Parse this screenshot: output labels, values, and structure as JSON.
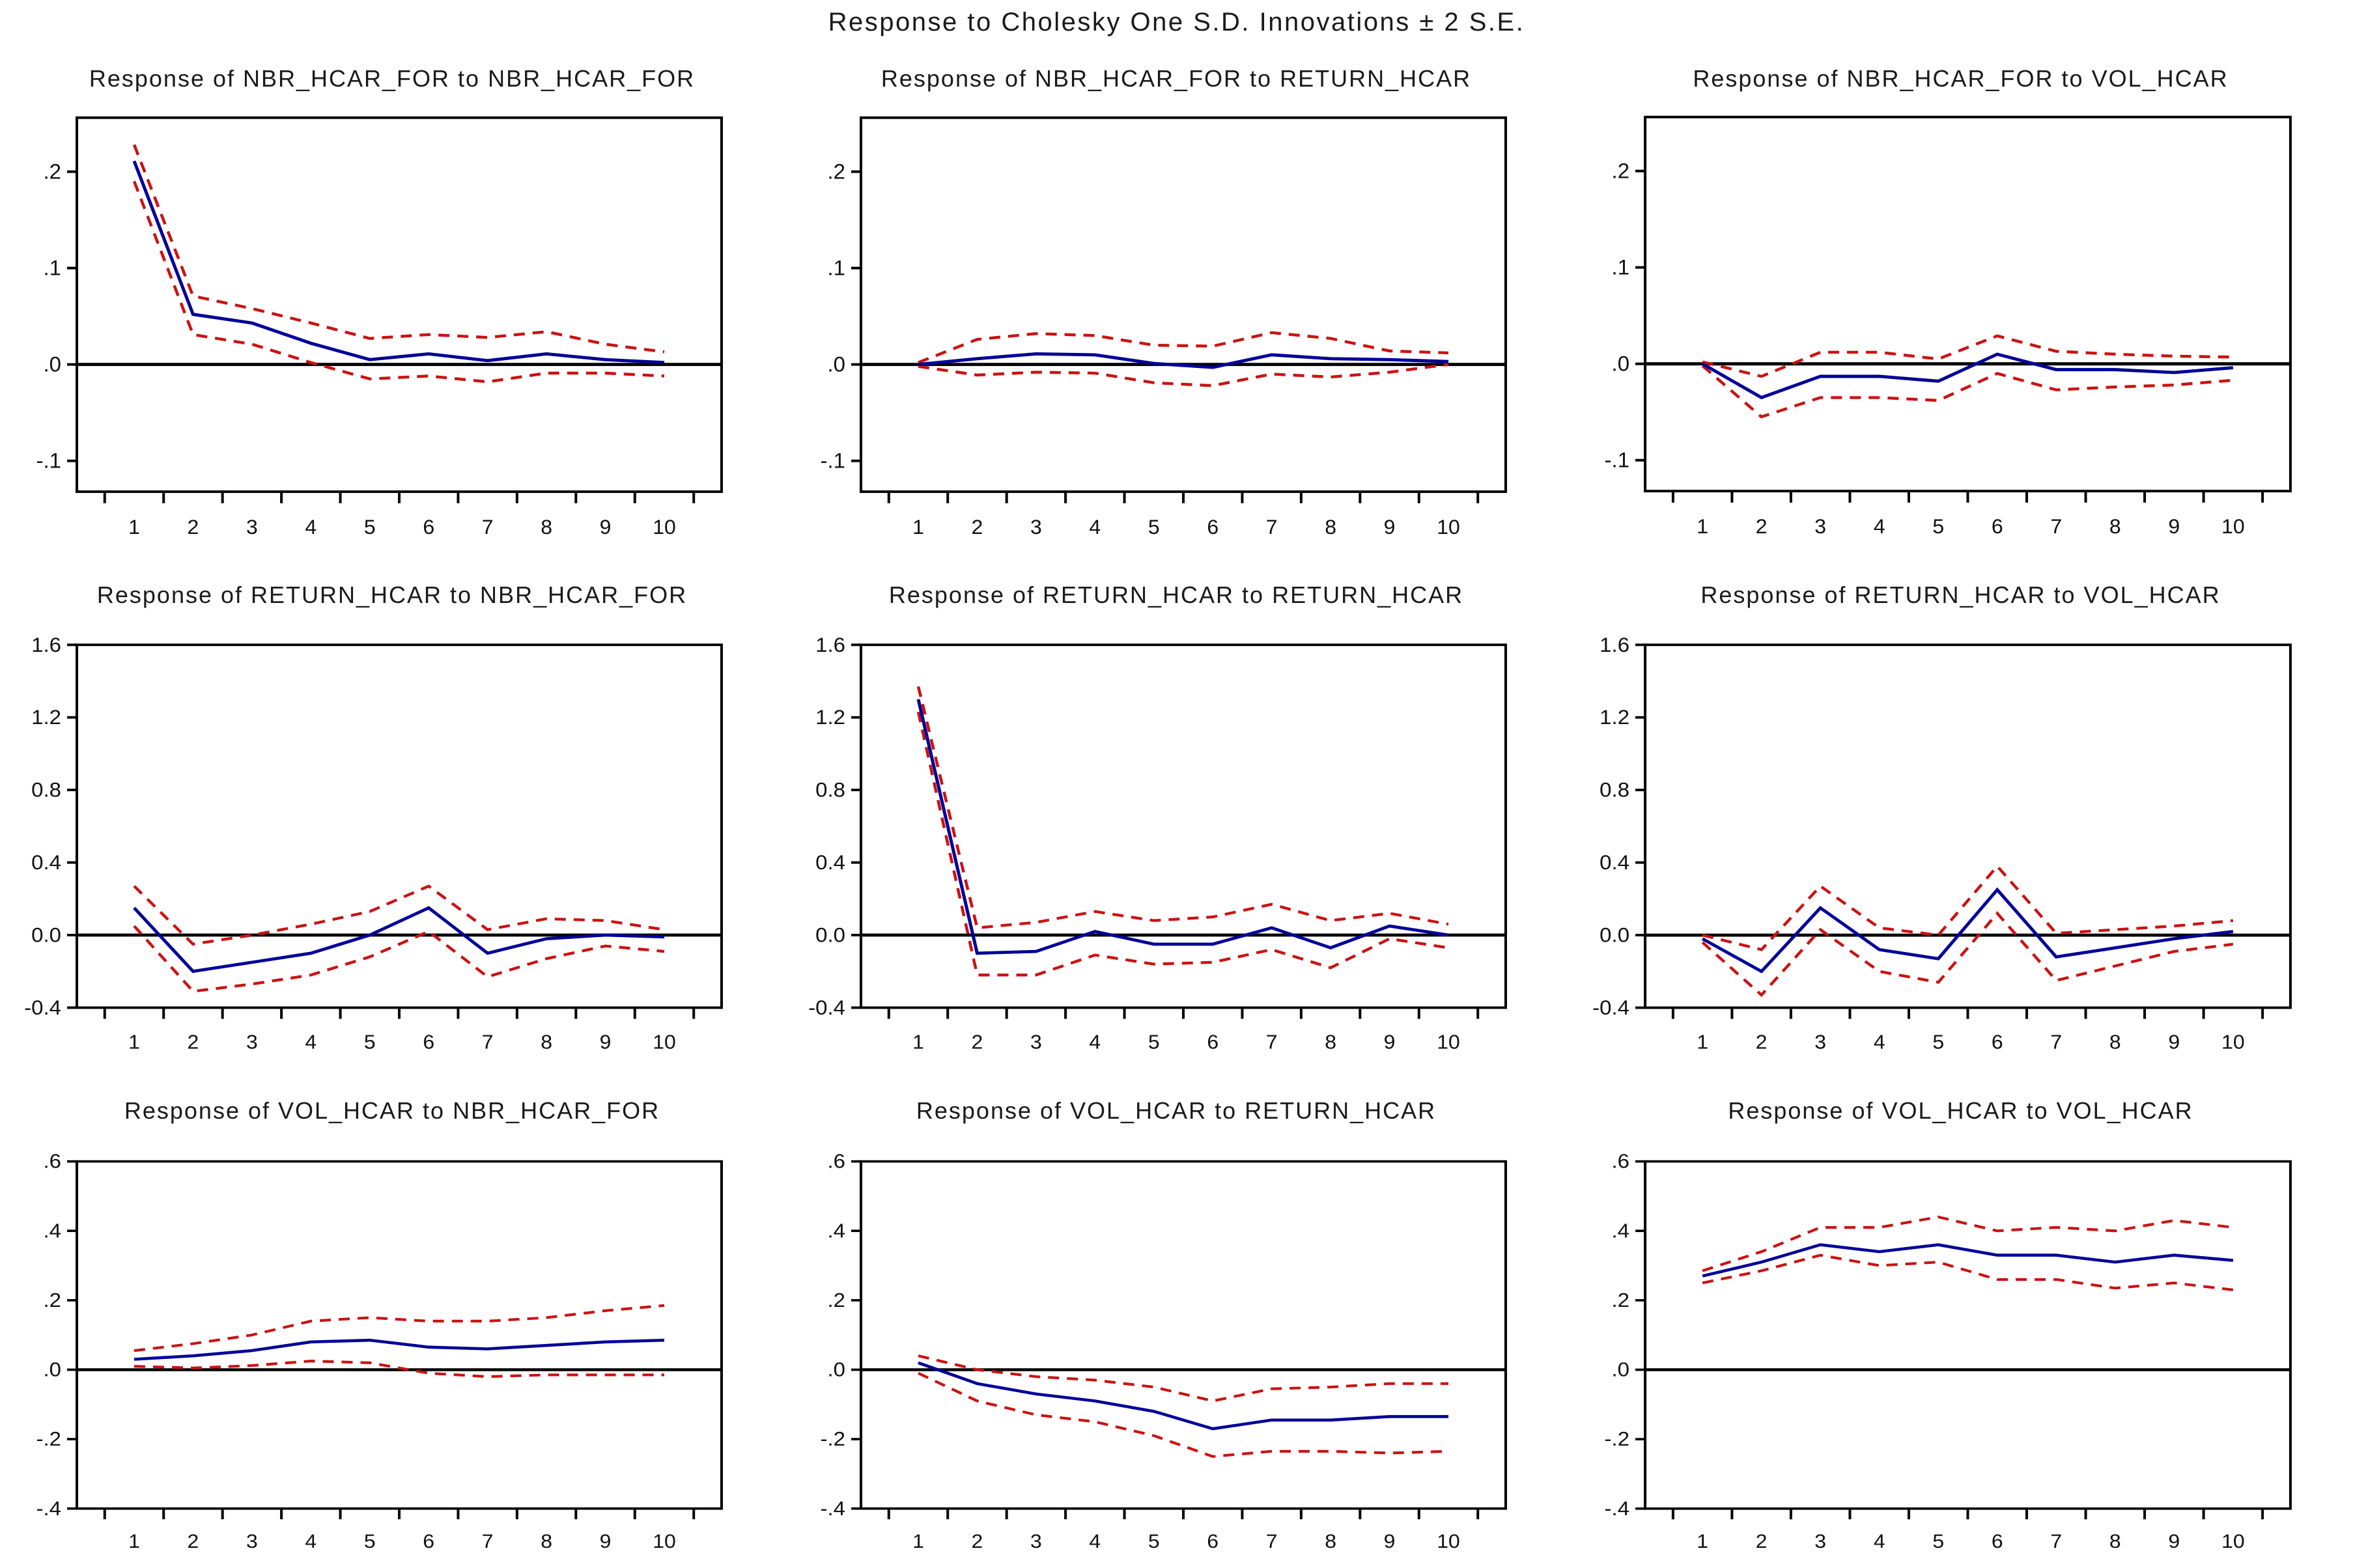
{
  "main_title": "Response to Cholesky One S.D. Innovations ± 2 S.E.",
  "x_labels": [
    "1",
    "2",
    "3",
    "4",
    "5",
    "6",
    "7",
    "8",
    "9",
    "10"
  ],
  "colors": {
    "response": "#000099",
    "band": "#cc1111",
    "axis": "#000000",
    "background": "#ffffff"
  },
  "legend": "none",
  "grid_lines": false,
  "chart_data": [
    {
      "type": "line",
      "title": "Response of NBR_HCAR_FOR to NBR_HCAR_FOR",
      "x": [
        1,
        2,
        3,
        4,
        5,
        6,
        7,
        8,
        9,
        10
      ],
      "ylim": [
        -0.132,
        0.256
      ],
      "yticks": [
        {
          "v": 0.2,
          "label": ".2"
        },
        {
          "v": 0.1,
          "label": ".1"
        },
        {
          "v": 0.0,
          "label": ".0"
        },
        {
          "v": -0.1,
          "label": "-.1"
        }
      ],
      "series": [
        {
          "name": "upper_2se",
          "color": "#cc1111",
          "style": "dashed",
          "values": [
            0.228,
            0.071,
            0.058,
            0.043,
            0.027,
            0.031,
            0.028,
            0.034,
            0.021,
            0.013
          ]
        },
        {
          "name": "lower_2se",
          "color": "#cc1111",
          "style": "dashed",
          "values": [
            0.19,
            0.031,
            0.021,
            0.002,
            -0.015,
            -0.012,
            -0.018,
            -0.009,
            -0.009,
            -0.012
          ]
        },
        {
          "name": "response",
          "color": "#000099",
          "style": "solid",
          "values": [
            0.211,
            0.052,
            0.043,
            0.022,
            0.005,
            0.011,
            0.004,
            0.011,
            0.005,
            0.002
          ]
        }
      ]
    },
    {
      "type": "line",
      "title": "Response of NBR_HCAR_FOR to RETURN_HCAR",
      "x": [
        1,
        2,
        3,
        4,
        5,
        6,
        7,
        8,
        9,
        10
      ],
      "ylim": [
        -0.132,
        0.256
      ],
      "yticks": [
        {
          "v": 0.2,
          "label": ".2"
        },
        {
          "v": 0.1,
          "label": ".1"
        },
        {
          "v": 0.0,
          "label": ".0"
        },
        {
          "v": -0.1,
          "label": "-.1"
        }
      ],
      "series": [
        {
          "name": "upper_2se",
          "color": "#cc1111",
          "style": "dashed",
          "values": [
            0.002,
            0.026,
            0.032,
            0.03,
            0.02,
            0.019,
            0.033,
            0.027,
            0.014,
            0.012
          ]
        },
        {
          "name": "lower_2se",
          "color": "#cc1111",
          "style": "dashed",
          "values": [
            -0.002,
            -0.011,
            -0.008,
            -0.009,
            -0.019,
            -0.022,
            -0.01,
            -0.013,
            -0.008,
            0.0
          ]
        },
        {
          "name": "response",
          "color": "#000099",
          "style": "solid",
          "values": [
            0.0,
            0.006,
            0.011,
            0.01,
            0.001,
            -0.003,
            0.01,
            0.006,
            0.005,
            0.003
          ]
        }
      ]
    },
    {
      "type": "line",
      "title": "Response of NBR_HCAR_FOR to VOL_HCAR",
      "x": [
        1,
        2,
        3,
        4,
        5,
        6,
        7,
        8,
        9,
        10
      ],
      "ylim": [
        -0.132,
        0.256
      ],
      "yticks": [
        {
          "v": 0.2,
          "label": ".2"
        },
        {
          "v": 0.1,
          "label": ".1"
        },
        {
          "v": 0.0,
          "label": ".0"
        },
        {
          "v": -0.1,
          "label": "-.1"
        }
      ],
      "series": [
        {
          "name": "upper_2se",
          "color": "#cc1111",
          "style": "dashed",
          "values": [
            0.002,
            -0.013,
            0.012,
            0.012,
            0.005,
            0.029,
            0.013,
            0.01,
            0.008,
            0.007
          ]
        },
        {
          "name": "lower_2se",
          "color": "#cc1111",
          "style": "dashed",
          "values": [
            -0.002,
            -0.055,
            -0.035,
            -0.035,
            -0.038,
            -0.01,
            -0.027,
            -0.024,
            -0.022,
            -0.017
          ]
        },
        {
          "name": "response",
          "color": "#000099",
          "style": "solid",
          "values": [
            0.0,
            -0.035,
            -0.013,
            -0.013,
            -0.018,
            0.01,
            -0.006,
            -0.006,
            -0.009,
            -0.004
          ]
        }
      ]
    },
    {
      "type": "line",
      "title": "Response of RETURN_HCAR to NBR_HCAR_FOR",
      "x": [
        1,
        2,
        3,
        4,
        5,
        6,
        7,
        8,
        9,
        10
      ],
      "ylim": [
        -0.4,
        1.6
      ],
      "yticks": [
        {
          "v": 1.6,
          "label": "1.6"
        },
        {
          "v": 1.2,
          "label": "1.2"
        },
        {
          "v": 0.8,
          "label": "0.8"
        },
        {
          "v": 0.4,
          "label": "0.4"
        },
        {
          "v": 0.0,
          "label": "0.0"
        },
        {
          "v": -0.4,
          "label": "-0.4"
        }
      ],
      "series": [
        {
          "name": "upper_2se",
          "color": "#cc1111",
          "style": "dashed",
          "values": [
            0.27,
            -0.05,
            0.0,
            0.06,
            0.13,
            0.27,
            0.03,
            0.09,
            0.08,
            0.03
          ]
        },
        {
          "name": "lower_2se",
          "color": "#cc1111",
          "style": "dashed",
          "values": [
            0.05,
            -0.31,
            -0.27,
            -0.22,
            -0.12,
            0.02,
            -0.23,
            -0.13,
            -0.06,
            -0.09
          ]
        },
        {
          "name": "response",
          "color": "#000099",
          "style": "solid",
          "values": [
            0.15,
            -0.2,
            -0.15,
            -0.1,
            0.0,
            0.15,
            -0.1,
            -0.02,
            0.0,
            -0.01
          ]
        }
      ]
    },
    {
      "type": "line",
      "title": "Response of RETURN_HCAR to RETURN_HCAR",
      "x": [
        1,
        2,
        3,
        4,
        5,
        6,
        7,
        8,
        9,
        10
      ],
      "ylim": [
        -0.4,
        1.6
      ],
      "yticks": [
        {
          "v": 1.6,
          "label": "1.6"
        },
        {
          "v": 1.2,
          "label": "1.2"
        },
        {
          "v": 0.8,
          "label": "0.8"
        },
        {
          "v": 0.4,
          "label": "0.4"
        },
        {
          "v": 0.0,
          "label": "0.0"
        },
        {
          "v": -0.4,
          "label": "-0.4"
        }
      ],
      "series": [
        {
          "name": "upper_2se",
          "color": "#cc1111",
          "style": "dashed",
          "values": [
            1.37,
            0.04,
            0.07,
            0.13,
            0.08,
            0.1,
            0.17,
            0.08,
            0.12,
            0.06
          ]
        },
        {
          "name": "lower_2se",
          "color": "#cc1111",
          "style": "dashed",
          "values": [
            1.23,
            -0.22,
            -0.22,
            -0.11,
            -0.16,
            -0.15,
            -0.08,
            -0.18,
            -0.02,
            -0.07
          ]
        },
        {
          "name": "response",
          "color": "#000099",
          "style": "solid",
          "values": [
            1.3,
            -0.1,
            -0.09,
            0.02,
            -0.05,
            -0.05,
            0.04,
            -0.07,
            0.05,
            0.0
          ]
        }
      ]
    },
    {
      "type": "line",
      "title": "Response of RETURN_HCAR to VOL_HCAR",
      "x": [
        1,
        2,
        3,
        4,
        5,
        6,
        7,
        8,
        9,
        10
      ],
      "ylim": [
        -0.4,
        1.6
      ],
      "yticks": [
        {
          "v": 1.6,
          "label": "1.6"
        },
        {
          "v": 1.2,
          "label": "1.2"
        },
        {
          "v": 0.8,
          "label": "0.8"
        },
        {
          "v": 0.4,
          "label": "0.4"
        },
        {
          "v": 0.0,
          "label": "0.0"
        },
        {
          "v": -0.4,
          "label": "-0.4"
        }
      ],
      "series": [
        {
          "name": "upper_2se",
          "color": "#cc1111",
          "style": "dashed",
          "values": [
            0.0,
            -0.08,
            0.27,
            0.04,
            0.0,
            0.38,
            0.01,
            0.03,
            0.05,
            0.08
          ]
        },
        {
          "name": "lower_2se",
          "color": "#cc1111",
          "style": "dashed",
          "values": [
            -0.04,
            -0.33,
            0.03,
            -0.2,
            -0.26,
            0.12,
            -0.25,
            -0.17,
            -0.09,
            -0.05
          ]
        },
        {
          "name": "response",
          "color": "#000099",
          "style": "solid",
          "values": [
            -0.02,
            -0.2,
            0.15,
            -0.08,
            -0.13,
            0.25,
            -0.12,
            -0.07,
            -0.02,
            0.02
          ]
        }
      ]
    },
    {
      "type": "line",
      "title": "Response of VOL_HCAR to NBR_HCAR_FOR",
      "x": [
        1,
        2,
        3,
        4,
        5,
        6,
        7,
        8,
        9,
        10
      ],
      "ylim": [
        -0.4,
        0.6
      ],
      "yticks": [
        {
          "v": 0.6,
          "label": ".6"
        },
        {
          "v": 0.4,
          "label": ".4"
        },
        {
          "v": 0.2,
          "label": ".2"
        },
        {
          "v": 0.0,
          "label": ".0"
        },
        {
          "v": -0.2,
          "label": "-.2"
        },
        {
          "v": -0.4,
          "label": "-.4"
        }
      ],
      "series": [
        {
          "name": "upper_2se",
          "color": "#cc1111",
          "style": "dashed",
          "values": [
            0.055,
            0.075,
            0.1,
            0.14,
            0.15,
            0.14,
            0.14,
            0.15,
            0.17,
            0.185
          ]
        },
        {
          "name": "lower_2se",
          "color": "#cc1111",
          "style": "dashed",
          "values": [
            0.01,
            0.005,
            0.012,
            0.025,
            0.02,
            -0.01,
            -0.02,
            -0.015,
            -0.015,
            -0.015
          ]
        },
        {
          "name": "response",
          "color": "#000099",
          "style": "solid",
          "values": [
            0.03,
            0.04,
            0.055,
            0.08,
            0.085,
            0.065,
            0.06,
            0.07,
            0.08,
            0.085
          ]
        }
      ]
    },
    {
      "type": "line",
      "title": "Response of VOL_HCAR to RETURN_HCAR",
      "x": [
        1,
        2,
        3,
        4,
        5,
        6,
        7,
        8,
        9,
        10
      ],
      "ylim": [
        -0.4,
        0.6
      ],
      "yticks": [
        {
          "v": 0.6,
          "label": ".6"
        },
        {
          "v": 0.4,
          "label": ".4"
        },
        {
          "v": 0.2,
          "label": ".2"
        },
        {
          "v": 0.0,
          "label": ".0"
        },
        {
          "v": -0.2,
          "label": "-.2"
        },
        {
          "v": -0.4,
          "label": "-.4"
        }
      ],
      "series": [
        {
          "name": "upper_2se",
          "color": "#cc1111",
          "style": "dashed",
          "values": [
            0.04,
            0.0,
            -0.02,
            -0.03,
            -0.05,
            -0.09,
            -0.055,
            -0.05,
            -0.04,
            -0.04
          ]
        },
        {
          "name": "lower_2se",
          "color": "#cc1111",
          "style": "dashed",
          "values": [
            -0.01,
            -0.09,
            -0.13,
            -0.15,
            -0.19,
            -0.25,
            -0.235,
            -0.235,
            -0.24,
            -0.235
          ]
        },
        {
          "name": "response",
          "color": "#000099",
          "style": "solid",
          "values": [
            0.02,
            -0.04,
            -0.07,
            -0.09,
            -0.12,
            -0.17,
            -0.145,
            -0.145,
            -0.135,
            -0.135
          ]
        }
      ]
    },
    {
      "type": "line",
      "title": "Response of VOL_HCAR to VOL_HCAR",
      "x": [
        1,
        2,
        3,
        4,
        5,
        6,
        7,
        8,
        9,
        10
      ],
      "ylim": [
        -0.4,
        0.6
      ],
      "yticks": [
        {
          "v": 0.6,
          "label": ".6"
        },
        {
          "v": 0.4,
          "label": ".4"
        },
        {
          "v": 0.2,
          "label": ".2"
        },
        {
          "v": 0.0,
          "label": ".0"
        },
        {
          "v": -0.2,
          "label": "-.2"
        },
        {
          "v": -0.4,
          "label": "-.4"
        }
      ],
      "series": [
        {
          "name": "upper_2se",
          "color": "#cc1111",
          "style": "dashed",
          "values": [
            0.285,
            0.34,
            0.41,
            0.41,
            0.44,
            0.4,
            0.41,
            0.4,
            0.43,
            0.41
          ]
        },
        {
          "name": "lower_2se",
          "color": "#cc1111",
          "style": "dashed",
          "values": [
            0.25,
            0.285,
            0.33,
            0.3,
            0.31,
            0.26,
            0.26,
            0.235,
            0.25,
            0.23
          ]
        },
        {
          "name": "response",
          "color": "#000099",
          "style": "solid",
          "values": [
            0.27,
            0.31,
            0.36,
            0.34,
            0.36,
            0.33,
            0.33,
            0.31,
            0.33,
            0.315
          ]
        }
      ]
    }
  ]
}
